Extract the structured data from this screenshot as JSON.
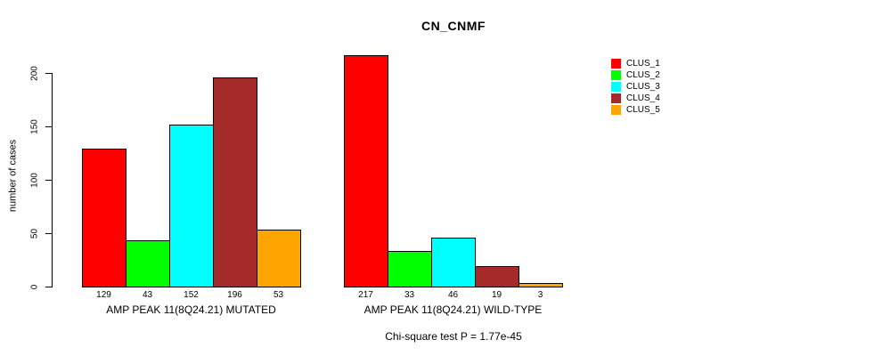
{
  "figure": {
    "title": "CN_CNMF",
    "y_axis_label": "number of cases",
    "annotation": "Chi-square test P = 1.77e-45"
  },
  "chart_data": {
    "type": "bar",
    "title": "CN_CNMF",
    "xlabel": "",
    "ylabel": "number of cases",
    "ylim": [
      0,
      220
    ],
    "yticks": [
      0,
      50,
      100,
      150,
      200
    ],
    "grid": false,
    "bar_value_labels_shown": true,
    "legend_position": "right-outside",
    "legend_entries": [
      {
        "label": "CLUS_1",
        "color": "#ff0000"
      },
      {
        "label": "CLUS_2",
        "color": "#00ff00"
      },
      {
        "label": "CLUS_3",
        "color": "#00ffff"
      },
      {
        "label": "CLUS_4",
        "color": "#a52a2a"
      },
      {
        "label": "CLUS_5",
        "color": "#ffa500"
      }
    ],
    "groups": [
      {
        "label": "AMP PEAK 11(8Q24.21) MUTATED",
        "categories": [
          "CLUS_1",
          "CLUS_2",
          "CLUS_3",
          "CLUS_4",
          "CLUS_5"
        ],
        "values": [
          129,
          43,
          152,
          196,
          53
        ]
      },
      {
        "label": "AMP PEAK 11(8Q24.21) WILD-TYPE",
        "categories": [
          "CLUS_1",
          "CLUS_2",
          "CLUS_3",
          "CLUS_4",
          "CLUS_5"
        ],
        "values": [
          217,
          33,
          46,
          19,
          3
        ]
      }
    ],
    "annotation": "Chi-square test P = 1.77e-45"
  }
}
